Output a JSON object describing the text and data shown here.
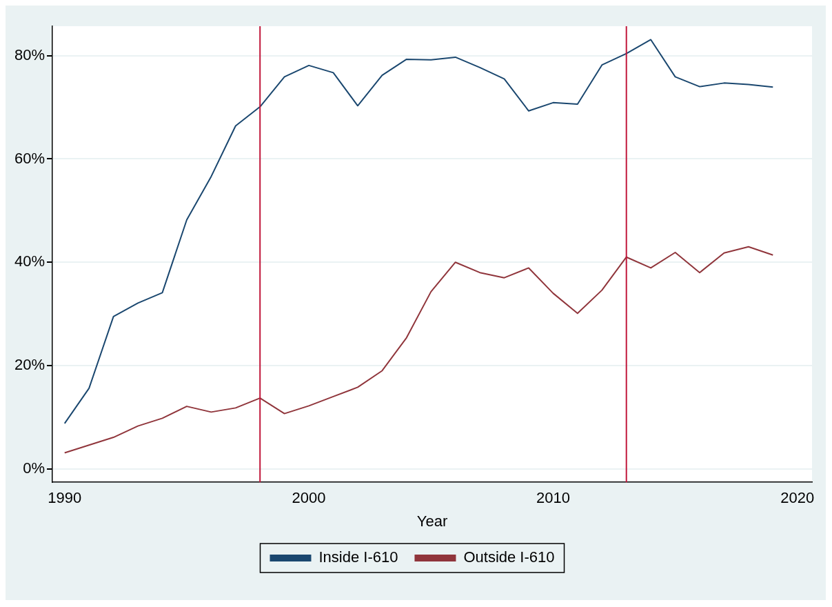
{
  "chart_data": {
    "type": "line",
    "xlabel": "Year",
    "x": [
      1990,
      1991,
      1992,
      1993,
      1994,
      1995,
      1996,
      1997,
      1998,
      1999,
      2000,
      2001,
      2002,
      2003,
      2004,
      2005,
      2006,
      2007,
      2008,
      2009,
      2010,
      2011,
      2012,
      2013,
      2014,
      2015,
      2016,
      2017,
      2018,
      2019
    ],
    "series": [
      {
        "name": "Inside I-610",
        "color": "#1a476f",
        "values": [
          8.8,
          15.6,
          29.5,
          32.1,
          34.1,
          48.2,
          56.6,
          66.4,
          70.1,
          75.9,
          78.1,
          76.7,
          70.3,
          76.2,
          79.3,
          79.2,
          79.7,
          77.7,
          75.5,
          69.3,
          70.9,
          70.6,
          78.2,
          80.4,
          83.1,
          75.9,
          74.0,
          74.7,
          74.4,
          73.9
        ]
      },
      {
        "name": "Outside I-610",
        "color": "#90353b",
        "values": [
          3.1,
          4.6,
          6.1,
          8.3,
          9.8,
          12.1,
          11.0,
          11.8,
          13.7,
          10.7,
          12.2,
          14.0,
          15.8,
          19.0,
          25.4,
          34.3,
          40.0,
          38.0,
          37.0,
          38.9,
          34.0,
          30.1,
          34.6,
          41.0,
          38.9,
          41.9,
          38.0,
          41.8,
          43.0,
          41.4
        ]
      }
    ],
    "xlim": [
      1989.5,
      2020.6
    ],
    "xticks": [
      1990,
      2000,
      2010,
      2020
    ],
    "ylim": [
      -2.6,
      85.7
    ],
    "yticks": [
      {
        "value": 0,
        "label": "0%"
      },
      {
        "value": 20,
        "label": "20%"
      },
      {
        "value": 40,
        "label": "40%"
      },
      {
        "value": 60,
        "label": "60%"
      },
      {
        "value": 80,
        "label": "80%"
      }
    ],
    "ref_lines": [
      {
        "axis": "x",
        "value": 1998,
        "color": "#c0163a"
      },
      {
        "axis": "x",
        "value": 2013,
        "color": "#c0163a"
      }
    ],
    "grid": "y",
    "legend": "bottom",
    "marker": "none",
    "line_style": "solid"
  }
}
